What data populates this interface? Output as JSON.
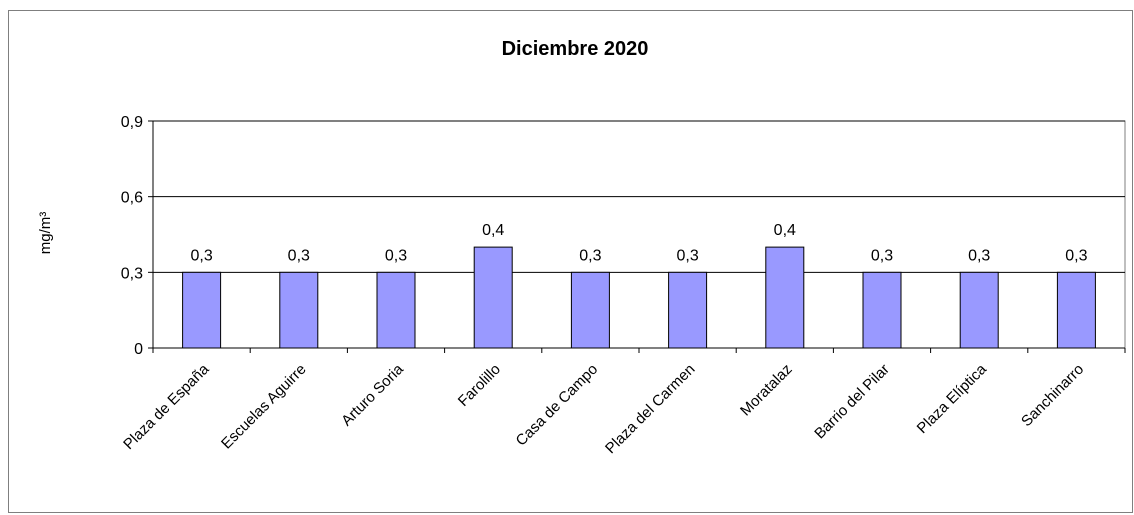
{
  "chart_data": {
    "type": "bar",
    "title": "Diciembre 2020",
    "xlabel": "",
    "ylabel": "mg/m³",
    "categories": [
      "Plaza de España",
      "Escuelas Aguirre",
      "Arturo Soria",
      "Farolillo",
      "Casa de Campo",
      "Plaza del Carmen",
      "Moratalaz",
      "Barrio del Pilar",
      "Plaza Elíptica",
      "Sanchinarro"
    ],
    "values": [
      0.3,
      0.3,
      0.3,
      0.4,
      0.3,
      0.3,
      0.4,
      0.3,
      0.3,
      0.3
    ],
    "data_labels": [
      "0,3",
      "0,3",
      "0,3",
      "0,4",
      "0,3",
      "0,3",
      "0,4",
      "0,3",
      "0,3",
      "0,3"
    ],
    "yticks": [
      0,
      0.3,
      0.6,
      0.9
    ],
    "ytick_labels": [
      "0",
      "0,3",
      "0,6",
      "0,9"
    ],
    "ylim": [
      0,
      0.9
    ],
    "grid": true,
    "legend": false,
    "colors": {
      "bar_fill": "#9999ff",
      "bar_stroke": "#000000",
      "grid": "#000000",
      "frame": "#7f7f7f"
    }
  }
}
